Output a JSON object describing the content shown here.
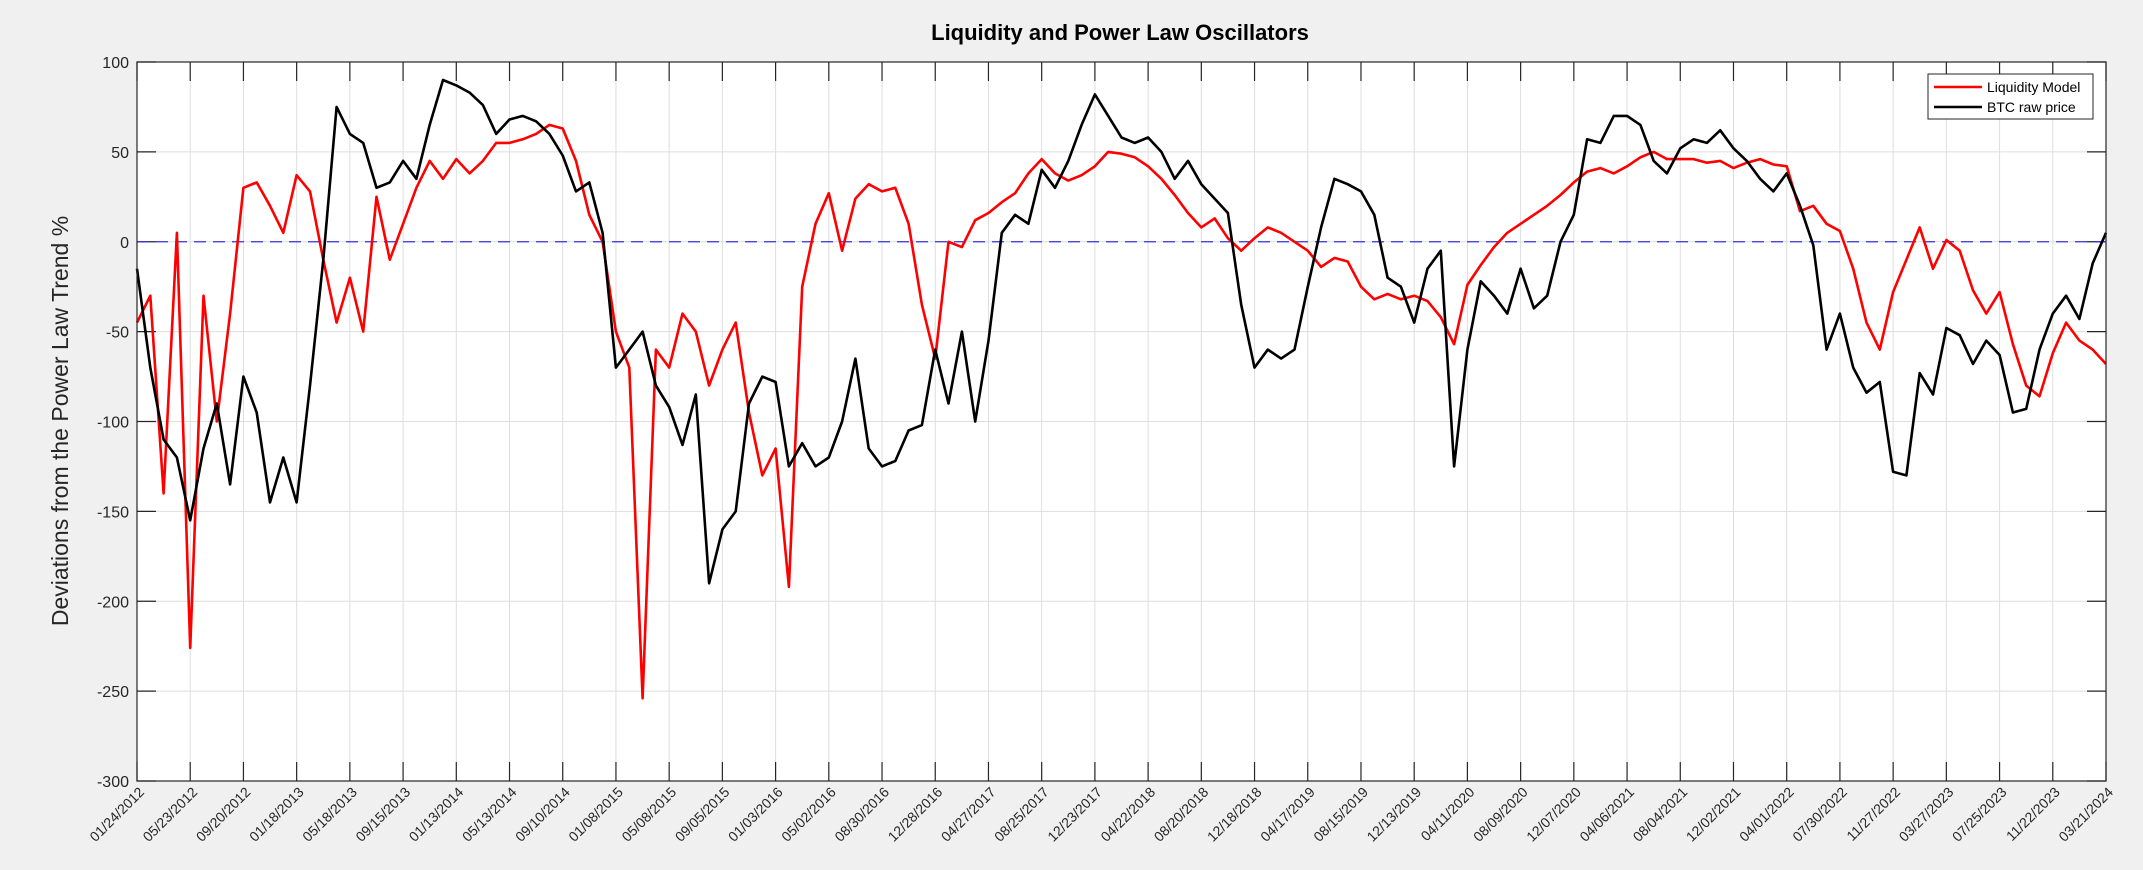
{
  "chart_data": {
    "type": "line",
    "title": "Liquidity and Power Law Oscillators",
    "xlabel": "",
    "ylabel": "Deviations from the Power Law Trend %",
    "ylim": [
      -300,
      100
    ],
    "yticks": [
      "-300",
      "-250",
      "-200",
      "-150",
      "-100",
      "-50",
      "0",
      "50",
      "100"
    ],
    "xlim": [
      "2012-01-24",
      "2024-03-21"
    ],
    "xticks": [
      "01/24/2012",
      "05/23/2012",
      "09/20/2012",
      "01/18/2013",
      "05/18/2013",
      "09/15/2013",
      "01/13/2014",
      "05/13/2014",
      "09/10/2014",
      "01/08/2015",
      "05/08/2015",
      "09/05/2015",
      "01/03/2016",
      "05/02/2016",
      "08/30/2016",
      "12/28/2016",
      "04/27/2017",
      "08/25/2017",
      "12/23/2017",
      "04/22/2018",
      "08/20/2018",
      "12/18/2018",
      "04/17/2019",
      "08/15/2019",
      "12/13/2019",
      "04/11/2020",
      "08/09/2020",
      "12/07/2020",
      "04/06/2021",
      "08/04/2021",
      "12/02/2021",
      "04/01/2022",
      "07/30/2022",
      "11/27/2022",
      "03/27/2023",
      "07/25/2023",
      "11/22/2023",
      "03/21/2024"
    ],
    "grid": true,
    "reference_line": {
      "y": 0,
      "style": "dashed",
      "color": "#3333dd"
    },
    "legend_position": "top-right",
    "x": [
      "2012-01-24",
      "2012-02-23",
      "2012-03-24",
      "2012-04-23",
      "2012-05-23",
      "2012-06-22",
      "2012-07-22",
      "2012-08-21",
      "2012-09-20",
      "2012-10-20",
      "2012-11-19",
      "2012-12-19",
      "2013-01-18",
      "2013-02-17",
      "2013-03-19",
      "2013-04-18",
      "2013-05-18",
      "2013-06-17",
      "2013-07-17",
      "2013-08-16",
      "2013-09-15",
      "2013-10-15",
      "2013-11-14",
      "2013-12-14",
      "2014-01-13",
      "2014-02-12",
      "2014-03-14",
      "2014-04-13",
      "2014-05-13",
      "2014-06-12",
      "2014-07-12",
      "2014-08-11",
      "2014-09-10",
      "2014-10-10",
      "2014-11-09",
      "2014-12-09",
      "2015-01-08",
      "2015-02-07",
      "2015-03-09",
      "2015-04-08",
      "2015-05-08",
      "2015-06-07",
      "2015-07-07",
      "2015-08-06",
      "2015-09-05",
      "2015-10-05",
      "2015-11-04",
      "2015-12-04",
      "2016-01-03",
      "2016-02-02",
      "2016-03-03",
      "2016-04-02",
      "2016-05-02",
      "2016-06-01",
      "2016-07-01",
      "2016-07-31",
      "2016-08-30",
      "2016-09-29",
      "2016-10-29",
      "2016-11-28",
      "2016-12-28",
      "2017-01-27",
      "2017-02-26",
      "2017-03-28",
      "2017-04-27",
      "2017-05-27",
      "2017-06-26",
      "2017-07-26",
      "2017-08-25",
      "2017-09-24",
      "2017-10-24",
      "2017-11-23",
      "2017-12-23",
      "2018-01-22",
      "2018-02-21",
      "2018-03-23",
      "2018-04-22",
      "2018-05-22",
      "2018-06-21",
      "2018-07-21",
      "2018-08-20",
      "2018-09-19",
      "2018-10-19",
      "2018-11-18",
      "2018-12-18",
      "2019-01-17",
      "2019-02-16",
      "2019-03-18",
      "2019-04-17",
      "2019-05-17",
      "2019-06-16",
      "2019-07-16",
      "2019-08-15",
      "2019-09-14",
      "2019-10-14",
      "2019-11-13",
      "2019-12-13",
      "2020-01-12",
      "2020-02-11",
      "2020-03-12",
      "2020-04-11",
      "2020-05-11",
      "2020-06-10",
      "2020-07-10",
      "2020-08-09",
      "2020-09-08",
      "2020-10-08",
      "2020-11-07",
      "2020-12-07",
      "2021-01-06",
      "2021-02-05",
      "2021-03-07",
      "2021-04-06",
      "2021-05-06",
      "2021-06-05",
      "2021-07-05",
      "2021-08-04",
      "2021-09-03",
      "2021-10-03",
      "2021-11-02",
      "2021-12-02",
      "2022-01-01",
      "2022-01-31",
      "2022-03-02",
      "2022-04-01",
      "2022-05-01",
      "2022-05-31",
      "2022-06-30",
      "2022-07-30",
      "2022-08-29",
      "2022-09-28",
      "2022-10-28",
      "2022-11-27",
      "2022-12-27",
      "2023-01-26",
      "2023-02-25",
      "2023-03-27",
      "2023-04-26",
      "2023-05-26",
      "2023-06-25",
      "2023-07-25",
      "2023-08-24",
      "2023-09-23",
      "2023-10-23",
      "2023-11-22",
      "2023-12-22",
      "2024-01-21",
      "2024-02-20",
      "2024-03-21"
    ],
    "series": [
      {
        "name": "Liquidity Model",
        "color": "#ff0000",
        "values": [
          -45,
          -30,
          -140,
          5,
          -226,
          -30,
          -100,
          -40,
          30,
          33,
          20,
          5,
          37,
          28,
          -10,
          -45,
          -20,
          -50,
          25,
          -10,
          10,
          30,
          45,
          35,
          46,
          38,
          45,
          55,
          55,
          57,
          60,
          65,
          63,
          45,
          15,
          0,
          -50,
          -70,
          -254,
          -60,
          -70,
          -40,
          -50,
          -80,
          -60,
          -45,
          -95,
          -130,
          -115,
          -192,
          -25,
          10,
          27,
          -5,
          24,
          32,
          28,
          30,
          10,
          -35,
          -65,
          0,
          -3,
          12,
          16,
          22,
          27,
          38,
          46,
          38,
          34,
          37,
          42,
          50,
          49,
          47,
          42,
          35,
          26,
          16,
          8,
          13,
          2,
          -5,
          2,
          8,
          5,
          0,
          -5,
          -14,
          -9,
          -11,
          -25,
          -32,
          -29,
          -32,
          -30,
          -33,
          -42,
          -57,
          -24,
          -13,
          -3,
          5,
          10,
          15,
          20,
          26,
          33,
          39,
          41,
          38,
          42,
          47,
          50,
          46,
          46,
          46,
          44,
          45,
          41,
          44,
          46,
          43,
          42,
          17,
          20,
          10,
          6,
          -15,
          -45,
          -60,
          -28,
          -10,
          8,
          -15,
          1,
          -5,
          -27,
          -40,
          -28,
          -57,
          -80,
          -86,
          -62,
          -45,
          -55,
          -60,
          -68
        ]
      },
      {
        "name": "BTC raw price",
        "color": "#000000",
        "values": [
          -15,
          -70,
          -110,
          -120,
          -155,
          -115,
          -90,
          -135,
          -75,
          -95,
          -145,
          -120,
          -145,
          -80,
          -10,
          75,
          60,
          55,
          30,
          33,
          45,
          35,
          65,
          90,
          87,
          83,
          76,
          60,
          68,
          70,
          67,
          60,
          48,
          28,
          33,
          5,
          -70,
          -60,
          -50,
          -80,
          -92,
          -113,
          -85,
          -190,
          -160,
          -150,
          -90,
          -75,
          -78,
          -125,
          -112,
          -125,
          -120,
          -100,
          -65,
          -115,
          -125,
          -122,
          -105,
          -102,
          -60,
          -90,
          -50,
          -100,
          -55,
          5,
          15,
          10,
          40,
          30,
          45,
          65,
          82,
          70,
          58,
          55,
          58,
          50,
          35,
          45,
          32,
          24,
          16,
          -35,
          -70,
          -60,
          -65,
          -60,
          -25,
          8,
          35,
          32,
          28,
          15,
          -20,
          -25,
          -45,
          -15,
          -5,
          -125,
          -60,
          -22,
          -30,
          -40,
          -15,
          -37,
          -30,
          0,
          15,
          57,
          55,
          70,
          70,
          65,
          45,
          38,
          52,
          57,
          55,
          62,
          52,
          45,
          35,
          28,
          38,
          20,
          -2,
          -60,
          -40,
          -70,
          -84,
          -78,
          -128,
          -130,
          -73,
          -85,
          -48,
          -52,
          -68,
          -55,
          -63,
          -95,
          -93,
          -60,
          -40,
          -30,
          -43,
          -12,
          5
        ]
      }
    ]
  }
}
